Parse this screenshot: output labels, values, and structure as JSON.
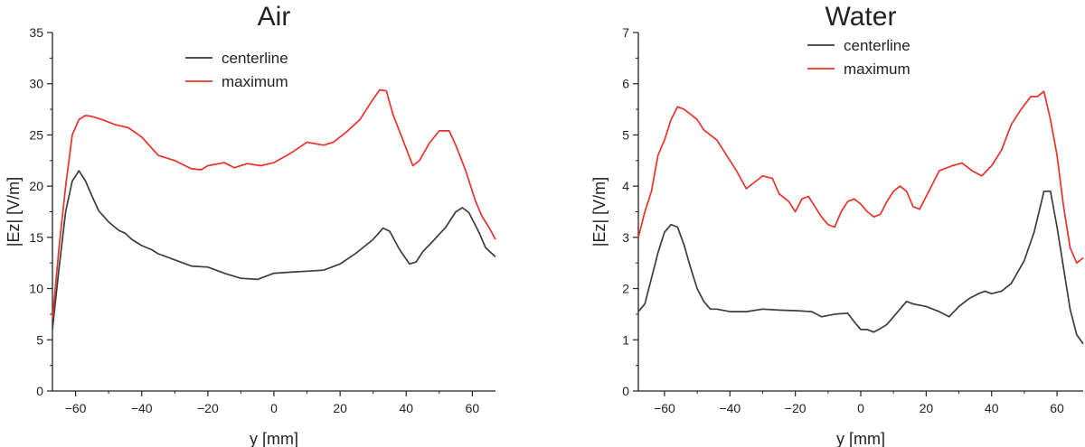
{
  "chart_data": [
    {
      "type": "line",
      "title": "Air",
      "xlabel": "y [mm]",
      "ylabel": "|Ez| [V/m]",
      "xlim": [
        -67,
        67
      ],
      "ylim": [
        0,
        35
      ],
      "xticks": [
        -60,
        -40,
        -20,
        0,
        20,
        40,
        60
      ],
      "yticks": [
        0,
        5,
        10,
        15,
        20,
        25,
        30,
        35
      ],
      "legend": "top-center",
      "grid": false,
      "series": [
        {
          "name": "centerline",
          "color": "#3c3c3c",
          "x": [
            -67,
            -65,
            -63,
            -61,
            -59,
            -57,
            -55,
            -53,
            -50,
            -47,
            -45,
            -43,
            -40,
            -37,
            -35,
            -30,
            -25,
            -20,
            -15,
            -10,
            -5,
            0,
            5,
            10,
            15,
            20,
            25,
            30,
            33,
            35,
            38,
            41,
            43,
            45,
            48,
            52,
            55,
            57,
            59,
            62,
            64,
            67
          ],
          "y": [
            6.0,
            12.0,
            17.5,
            20.5,
            21.5,
            20.5,
            19.0,
            17.6,
            16.5,
            15.7,
            15.4,
            14.8,
            14.2,
            13.8,
            13.4,
            12.8,
            12.2,
            12.1,
            11.5,
            11.0,
            10.9,
            11.5,
            11.6,
            11.7,
            11.8,
            12.4,
            13.5,
            14.8,
            15.9,
            15.6,
            13.8,
            12.4,
            12.6,
            13.6,
            14.6,
            16.0,
            17.5,
            17.9,
            17.4,
            15.5,
            14.0,
            13.1
          ]
        },
        {
          "name": "maximum",
          "color": "#e8312b",
          "x": [
            -67,
            -65,
            -63,
            -61,
            -59,
            -57,
            -55,
            -52,
            -48,
            -44,
            -40,
            -35,
            -30,
            -25,
            -22,
            -20,
            -15,
            -12,
            -8,
            -4,
            0,
            5,
            10,
            15,
            18,
            22,
            26,
            30,
            32,
            34,
            36,
            39,
            42,
            44,
            47,
            50,
            53,
            55,
            58,
            61,
            63,
            65,
            67
          ],
          "y": [
            7.0,
            14.0,
            20.0,
            25.0,
            26.5,
            26.9,
            26.8,
            26.5,
            26.0,
            25.7,
            24.8,
            23.0,
            22.5,
            21.7,
            21.6,
            22.0,
            22.3,
            21.8,
            22.2,
            22.0,
            22.3,
            23.2,
            24.3,
            24.0,
            24.3,
            25.3,
            26.5,
            28.5,
            29.4,
            29.3,
            27.0,
            24.5,
            22.0,
            22.5,
            24.2,
            25.4,
            25.4,
            24.0,
            21.5,
            18.5,
            17.0,
            16.0,
            14.8
          ]
        }
      ]
    },
    {
      "type": "line",
      "title": "Water",
      "xlabel": "y [mm]",
      "ylabel": "|Ez| [V/m]",
      "xlim": [
        -68,
        68
      ],
      "ylim": [
        0,
        7
      ],
      "xticks": [
        -60,
        -40,
        -20,
        0,
        20,
        40,
        60
      ],
      "yticks": [
        0,
        1,
        2,
        3,
        4,
        5,
        6,
        7
      ],
      "legend": "top-center",
      "grid": false,
      "series": [
        {
          "name": "centerline",
          "color": "#3c3c3c",
          "x": [
            -68,
            -66,
            -64,
            -62,
            -60,
            -58,
            -56,
            -54,
            -52,
            -50,
            -48,
            -46,
            -44,
            -40,
            -35,
            -30,
            -25,
            -20,
            -15,
            -12,
            -8,
            -4,
            -2,
            0,
            2,
            4,
            6,
            8,
            10,
            12,
            14,
            16,
            20,
            24,
            27,
            30,
            33,
            36,
            38,
            40,
            43,
            46,
            50,
            53,
            56,
            58,
            60,
            62,
            64,
            66,
            68
          ],
          "y": [
            1.55,
            1.7,
            2.2,
            2.7,
            3.1,
            3.25,
            3.2,
            2.85,
            2.4,
            2.0,
            1.75,
            1.6,
            1.6,
            1.55,
            1.55,
            1.6,
            1.58,
            1.57,
            1.55,
            1.45,
            1.5,
            1.52,
            1.35,
            1.2,
            1.2,
            1.15,
            1.22,
            1.3,
            1.45,
            1.6,
            1.75,
            1.7,
            1.65,
            1.55,
            1.45,
            1.65,
            1.8,
            1.9,
            1.95,
            1.9,
            1.95,
            2.1,
            2.55,
            3.1,
            3.9,
            3.9,
            3.2,
            2.4,
            1.6,
            1.1,
            0.92
          ]
        },
        {
          "name": "maximum",
          "color": "#e8312b",
          "x": [
            -68,
            -66,
            -64,
            -62,
            -60,
            -58,
            -56,
            -54,
            -52,
            -50,
            -48,
            -46,
            -44,
            -42,
            -40,
            -38,
            -35,
            -32,
            -30,
            -27,
            -25,
            -22,
            -20,
            -18,
            -16,
            -14,
            -12,
            -10,
            -8,
            -6,
            -4,
            -2,
            0,
            2,
            4,
            6,
            8,
            10,
            12,
            14,
            16,
            18,
            20,
            24,
            28,
            31,
            34,
            37,
            40,
            43,
            46,
            49,
            52,
            54,
            56,
            58,
            60,
            62,
            64,
            66,
            68
          ],
          "y": [
            3.0,
            3.5,
            3.9,
            4.6,
            4.9,
            5.3,
            5.55,
            5.5,
            5.4,
            5.3,
            5.1,
            5.0,
            4.9,
            4.7,
            4.5,
            4.3,
            3.95,
            4.1,
            4.2,
            4.15,
            3.85,
            3.7,
            3.5,
            3.75,
            3.8,
            3.6,
            3.4,
            3.25,
            3.2,
            3.5,
            3.7,
            3.75,
            3.65,
            3.5,
            3.4,
            3.45,
            3.7,
            3.9,
            4.0,
            3.9,
            3.6,
            3.55,
            3.8,
            4.3,
            4.4,
            4.45,
            4.3,
            4.2,
            4.4,
            4.7,
            5.2,
            5.5,
            5.75,
            5.75,
            5.85,
            5.3,
            4.6,
            3.6,
            2.8,
            2.5,
            2.6
          ]
        }
      ]
    }
  ]
}
